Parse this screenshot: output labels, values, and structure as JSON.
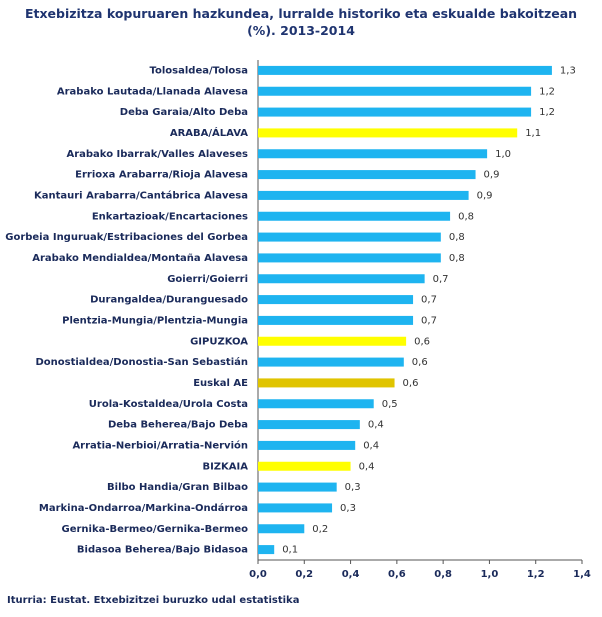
{
  "chart_data": {
    "type": "hbar",
    "title": "Etxebizitza kopuruaren hazkundea, lurralde historiko eta eskualde bakoitzean (%). 2013-2014",
    "source": "Iturria: Eustat. Etxebizitzei buruzko udal estatistika",
    "categories": [
      "Tolosaldea/Tolosa",
      "Arabako Lautada/Llanada Alavesa",
      "Deba Garaia/Alto Deba",
      "ARABA/ÁLAVA",
      "Arabako Ibarrak/Valles Alaveses",
      "Errioxa Arabarra/Rioja Alavesa",
      "Kantauri Arabarra/Cantábrica Alavesa",
      "Enkartazioak/Encartaciones",
      "Gorbeia Inguruak/Estribaciones del Gorbea",
      "Arabako Mendialdea/Montaña Alavesa",
      "Goierri/Goierri",
      "Durangaldea/Duranguesado",
      "Plentzia-Mungia/Plentzia-Mungia",
      "GIPUZKOA",
      "Donostialdea/Donostia-San Sebastián",
      "Euskal AE",
      "Urola-Kostaldea/Urola Costa",
      "Deba Beherea/Bajo Deba",
      "Arratia-Nerbioi/Arratia-Nervión",
      "BIZKAIA",
      "Bilbo Handia/Gran Bilbao",
      "Markina-Ondarroa/Markina-Ondárroa",
      "Gernika-Bermeo/Gernika-Bermeo",
      "Bidasoa Beherea/Bajo Bidasoa"
    ],
    "values": [
      1.27,
      1.18,
      1.18,
      1.12,
      0.99,
      0.94,
      0.91,
      0.83,
      0.79,
      0.79,
      0.72,
      0.67,
      0.67,
      0.64,
      0.63,
      0.59,
      0.5,
      0.44,
      0.42,
      0.4,
      0.34,
      0.32,
      0.2,
      0.07
    ],
    "value_labels": [
      "1,3",
      "1,2",
      "1,2",
      "1,1",
      "1,0",
      "0,9",
      "0,9",
      "0,8",
      "0,8",
      "0,8",
      "0,7",
      "0,7",
      "0,7",
      "0,6",
      "0,6",
      "0,6",
      "0,5",
      "0,4",
      "0,4",
      "0,4",
      "0,3",
      "0,3",
      "0,2",
      "0,1"
    ],
    "colors": [
      "#1eb4f0",
      "#1eb4f0",
      "#1eb4f0",
      "#ffff00",
      "#1eb4f0",
      "#1eb4f0",
      "#1eb4f0",
      "#1eb4f0",
      "#1eb4f0",
      "#1eb4f0",
      "#1eb4f0",
      "#1eb4f0",
      "#1eb4f0",
      "#ffff00",
      "#1eb4f0",
      "#e0c400",
      "#1eb4f0",
      "#1eb4f0",
      "#1eb4f0",
      "#ffff00",
      "#1eb4f0",
      "#1eb4f0",
      "#1eb4f0",
      "#1eb4f0"
    ],
    "xlim": [
      0,
      1.4
    ],
    "xticks": [
      {
        "value": 0,
        "label": "0,0"
      },
      {
        "value": 0.2,
        "label": "0,2"
      },
      {
        "value": 0.4,
        "label": "0,4"
      },
      {
        "value": 0.6,
        "label": "0,6"
      },
      {
        "value": 0.8,
        "label": "0,8"
      },
      {
        "value": 1.0,
        "label": "1,0"
      },
      {
        "value": 1.2,
        "label": "1,2"
      },
      {
        "value": 1.4,
        "label": "1,4"
      }
    ],
    "grid": false
  }
}
